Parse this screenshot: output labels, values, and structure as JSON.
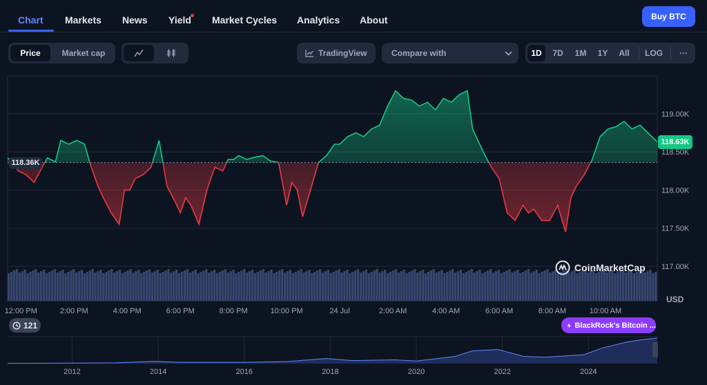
{
  "nav": {
    "tabs": [
      {
        "label": "Chart",
        "active": true
      },
      {
        "label": "Markets"
      },
      {
        "label": "News"
      },
      {
        "label": "Yield"
      },
      {
        "label": "Market Cycles"
      },
      {
        "label": "Analytics"
      },
      {
        "label": "About"
      }
    ],
    "buy_label": "Buy BTC"
  },
  "toolbar": {
    "metric_options": [
      "Price",
      "Market cap"
    ],
    "selected_metric": "Price",
    "chart_style_icons": [
      "line-chart-icon",
      "candlestick-icon"
    ],
    "tradingview_label": "TradingView",
    "compare_placeholder": "Compare with",
    "timeframes": [
      "1D",
      "7D",
      "1M",
      "1Y",
      "All"
    ],
    "selected_timeframe": "1D",
    "log_label": "LOG",
    "more_label": "···"
  },
  "colors": {
    "up": "#16c784",
    "down": "#ea3943",
    "accent": "#3861fb",
    "background": "#0d1421",
    "volume": "#3d4c7a",
    "news_pill": "#8b3dff"
  },
  "chart_data": [
    {
      "type": "line",
      "currency": "USD",
      "baseline": 118360,
      "baseline_label": "118.36K",
      "current": 118630,
      "current_label": "118.63K",
      "ylim": [
        116800,
        119500
      ],
      "yticks": [
        117000,
        117500,
        118000,
        118500,
        119000
      ],
      "ytick_labels": [
        "117.00K",
        "117.50K",
        "118.00K",
        "118.50K",
        "119.00K"
      ],
      "xlim": [
        11.5,
        35.95
      ],
      "xticks": [
        12,
        14,
        16,
        18,
        20,
        22,
        24,
        26,
        28,
        30,
        32,
        34
      ],
      "xtick_labels": [
        "12:00 PM",
        "2:00 PM",
        "4:00 PM",
        "6:00 PM",
        "8:00 PM",
        "10:00 PM",
        "24 Jul",
        "2:00 AM",
        "4:00 AM",
        "6:00 AM",
        "8:00 AM",
        "10:00 AM"
      ],
      "x": [
        11.5,
        11.7,
        11.9,
        12.2,
        12.5,
        12.8,
        13.0,
        13.3,
        13.5,
        13.8,
        14.1,
        14.4,
        14.6,
        14.9,
        15.1,
        15.4,
        15.7,
        15.9,
        16.1,
        16.3,
        16.6,
        16.9,
        17.2,
        17.5,
        17.8,
        18.0,
        18.2,
        18.4,
        18.7,
        19.0,
        19.3,
        19.6,
        19.8,
        20.0,
        20.2,
        20.5,
        20.8,
        21.1,
        21.4,
        21.7,
        22.0,
        22.2,
        22.4,
        22.6,
        22.9,
        23.2,
        23.5,
        23.8,
        24.0,
        24.3,
        24.6,
        24.9,
        25.2,
        25.5,
        25.8,
        26.1,
        26.4,
        26.7,
        27.0,
        27.3,
        27.6,
        27.9,
        28.2,
        28.5,
        28.8,
        29.0,
        29.2,
        29.4,
        29.7,
        30.0,
        30.3,
        30.6,
        30.9,
        31.1,
        31.3,
        31.6,
        31.9,
        32.2,
        32.5,
        32.7,
        32.9,
        33.2,
        33.5,
        33.8,
        34.1,
        34.4,
        34.7,
        35.0,
        35.3,
        35.6,
        35.95
      ],
      "y": [
        118420,
        118360,
        118250,
        118200,
        118100,
        118300,
        118420,
        118370,
        118650,
        118600,
        118650,
        118600,
        118350,
        118050,
        117900,
        117700,
        117550,
        118000,
        118000,
        118150,
        118200,
        118300,
        118650,
        118050,
        117850,
        117700,
        117900,
        117800,
        117550,
        118000,
        118300,
        118250,
        118400,
        118400,
        118450,
        118400,
        118430,
        118450,
        118380,
        118360,
        117800,
        118100,
        118000,
        117650,
        118000,
        118360,
        118450,
        118600,
        118600,
        118700,
        118750,
        118700,
        118800,
        118850,
        119100,
        119300,
        119200,
        119180,
        119100,
        119150,
        119050,
        119200,
        119150,
        119250,
        119300,
        118800,
        118650,
        118500,
        118300,
        118150,
        117700,
        117600,
        117800,
        117700,
        117750,
        117600,
        117600,
        117800,
        117450,
        117900,
        118050,
        118200,
        118400,
        118700,
        118800,
        118830,
        118900,
        118800,
        118850,
        118750,
        118630
      ],
      "volume_axis": "bars"
    },
    {
      "type": "area",
      "name": "history",
      "xtick_labels": [
        "2012",
        "2014",
        "2016",
        "2018",
        "2020",
        "2022",
        "2024"
      ],
      "xticks": [
        2012,
        2014,
        2016,
        2018,
        2020,
        2022,
        2024
      ],
      "xlim": [
        2010.5,
        2025.6
      ],
      "x": [
        2010.5,
        2012,
        2013,
        2013.9,
        2014.5,
        2016,
        2017,
        2017.9,
        2018.5,
        2019.5,
        2020,
        2020.9,
        2021.3,
        2021.9,
        2022.5,
        2023,
        2023.9,
        2024.3,
        2024.9,
        2025.3,
        2025.6
      ],
      "y": [
        0.01,
        0.02,
        0.03,
        0.09,
        0.05,
        0.05,
        0.08,
        0.2,
        0.12,
        0.15,
        0.1,
        0.28,
        0.5,
        0.55,
        0.28,
        0.25,
        0.35,
        0.6,
        0.85,
        0.95,
        1.0
      ]
    }
  ],
  "overlays": {
    "logo_text": "CoinMarketCap",
    "usd_label": "USD",
    "events_count": "121",
    "news_label": "BlackRock's Bitcoin ..."
  }
}
